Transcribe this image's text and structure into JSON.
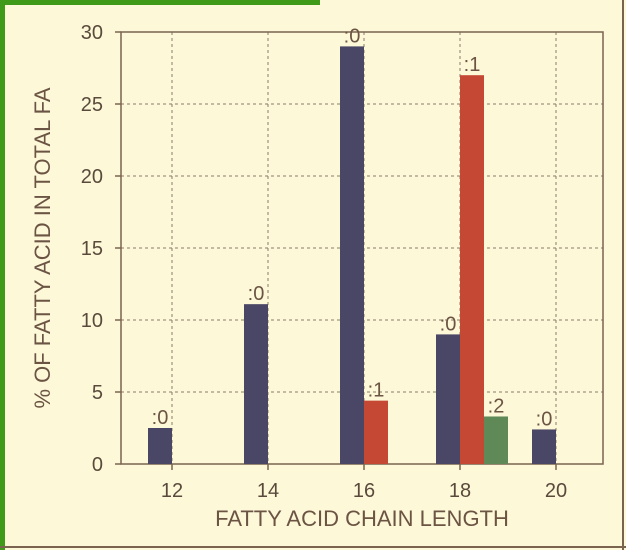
{
  "chart_data": {
    "type": "bar",
    "xlabel": "FATTY ACID CHAIN LENGTH",
    "ylabel": "% OF FATTY ACID IN TOTAL FA",
    "ylim": [
      0,
      30
    ],
    "yticks": [
      "0",
      "5",
      "10",
      "15",
      "20",
      "25",
      "30"
    ],
    "categories": [
      "12",
      "14",
      "16",
      "18",
      "20"
    ],
    "grid": true,
    "bars": [
      {
        "category": "12",
        "label": ":0",
        "value": 2.5,
        "color": "#4a4666"
      },
      {
        "category": "14",
        "label": ":0",
        "value": 11.1,
        "color": "#4a4666"
      },
      {
        "category": "16",
        "label": ":0",
        "value": 29.0,
        "color": "#4a4666"
      },
      {
        "category": "16",
        "label": ":1",
        "value": 4.4,
        "color": "#c44834"
      },
      {
        "category": "18",
        "label": ":0",
        "value": 9.0,
        "color": "#4a4666"
      },
      {
        "category": "18",
        "label": ":1",
        "value": 27.0,
        "color": "#c44834"
      },
      {
        "category": "18",
        "label": ":2",
        "value": 3.3,
        "color": "#5f8a58"
      },
      {
        "category": "20",
        "label": ":0",
        "value": 2.4,
        "color": "#4a4666"
      }
    ]
  }
}
